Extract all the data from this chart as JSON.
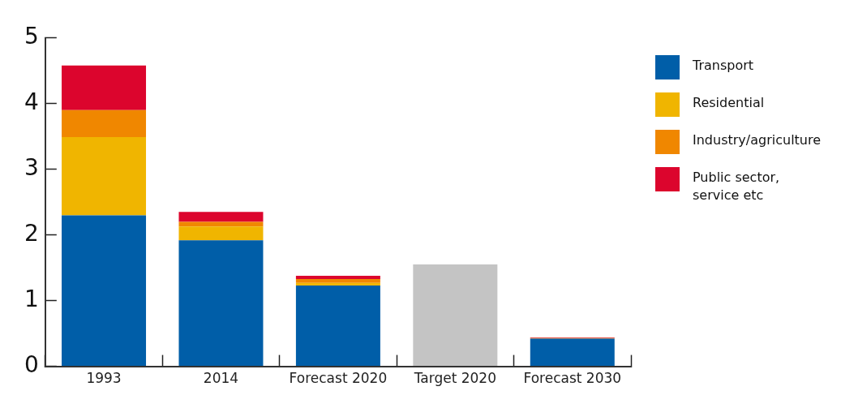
{
  "chart_data": {
    "type": "bar",
    "stacked": true,
    "categories": [
      "1993",
      "2014",
      "Forecast 2020",
      "Target 2020",
      "Forecast 2030"
    ],
    "series": [
      {
        "name": "Transport",
        "color": "#005ea8",
        "values": [
          2.3,
          1.92,
          1.23,
          null,
          0.42
        ]
      },
      {
        "name": "Residential",
        "color": "#f0b500",
        "values": [
          1.19,
          0.21,
          0.04,
          null,
          null
        ]
      },
      {
        "name": "Industry/agriculture",
        "color": "#f08700",
        "values": [
          0.41,
          0.07,
          0.06,
          null,
          0.01
        ]
      },
      {
        "name": "Public sector, service etc",
        "color": "#dc052d",
        "values": [
          0.68,
          0.15,
          0.05,
          null,
          0.01
        ]
      },
      {
        "color": "#c4c4c4",
        "values": [
          null,
          null,
          null,
          1.55,
          null
        ]
      }
    ],
    "ylim": [
      0,
      5
    ],
    "yticks": [
      0,
      1,
      2,
      3,
      4,
      5
    ],
    "grid": false,
    "legend": "right"
  }
}
